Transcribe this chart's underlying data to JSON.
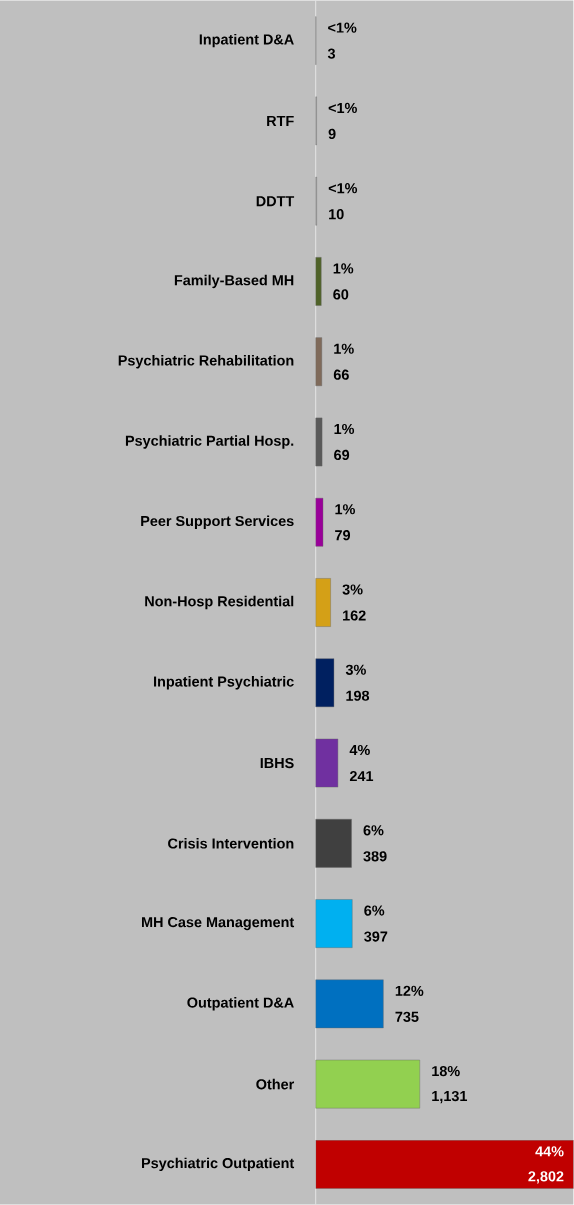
{
  "chart_data": {
    "type": "bar",
    "orientation": "horizontal",
    "xlim": [
      0,
      2802
    ],
    "categories": [
      "Inpatient D&A",
      "RTF",
      "DDTT",
      "Family-Based MH",
      "Psychiatric Rehabilitation",
      "Psychiatric Partial Hosp.",
      "Peer Support Services",
      "Non-Hosp Residential",
      "Inpatient Psychiatric",
      "IBHS",
      "Crisis Intervention",
      "MH Case Management",
      "Outpatient D&A",
      "Other",
      "Psychiatric Outpatient"
    ],
    "values": [
      3,
      9,
      10,
      60,
      66,
      69,
      79,
      162,
      198,
      241,
      389,
      397,
      735,
      1131,
      2802
    ],
    "value_labels": [
      "3",
      "9",
      "10",
      "60",
      "66",
      "69",
      "79",
      "162",
      "198",
      "241",
      "389",
      "397",
      "735",
      "1,131",
      "2,802"
    ],
    "colors": [
      "#a6a6a6",
      "#a6a6a6",
      "#a6a6a6",
      "#4f6228",
      "#7f6a5a",
      "#595959",
      "#990099",
      "#d4a017",
      "#002060",
      "#7030a0",
      "#404040",
      "#00b0f0",
      "#0070c0",
      "#92d050",
      "#c00000"
    ],
    "annotations": [
      {
        "text": "<1%",
        "x": 3,
        "y": "Inpatient D&A"
      },
      {
        "text": "<1%",
        "x": 9,
        "y": "RTF"
      },
      {
        "text": "<1%",
        "x": 10,
        "y": "DDTT"
      },
      {
        "text": "1%",
        "x": 60,
        "y": "Family-Based MH"
      },
      {
        "text": "1%",
        "x": 66,
        "y": "Psychiatric Rehabilitation"
      },
      {
        "text": "1%",
        "x": 69,
        "y": "Psychiatric Partial Hosp."
      },
      {
        "text": "1%",
        "x": 79,
        "y": "Peer Support Services"
      },
      {
        "text": "3%",
        "x": 162,
        "y": "Non-Hosp Residential"
      },
      {
        "text": "3%",
        "x": 198,
        "y": "Inpatient Psychiatric"
      },
      {
        "text": "4%",
        "x": 241,
        "y": "IBHS"
      },
      {
        "text": "6%",
        "x": 389,
        "y": "Crisis Intervention"
      },
      {
        "text": "6%",
        "x": 397,
        "y": "MH Case Management"
      },
      {
        "text": "12%",
        "x": 735,
        "y": "Outpatient D&A"
      },
      {
        "text": "18%",
        "x": 1131,
        "y": "Other"
      },
      {
        "text": "44%",
        "x": 2802,
        "y": "Psychiatric Outpatient"
      }
    ]
  }
}
